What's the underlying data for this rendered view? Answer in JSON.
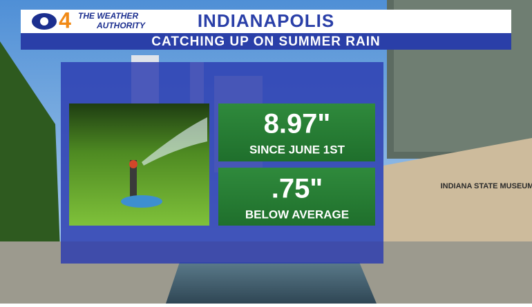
{
  "header": {
    "channel": "4",
    "brand_line1": "THE WEATHER",
    "brand_line2": "AUTHORITY",
    "title": "INDIANAPOLIS",
    "subtitle": "CATCHING UP ON SUMMER RAIN"
  },
  "stats": [
    {
      "value": "8.97\"",
      "label": "SINCE JUNE 1ST"
    },
    {
      "value": ".75\"",
      "label": "BELOW AVERAGE"
    }
  ],
  "background": {
    "building_sign": "INDIANA STATE MUSEUM"
  }
}
